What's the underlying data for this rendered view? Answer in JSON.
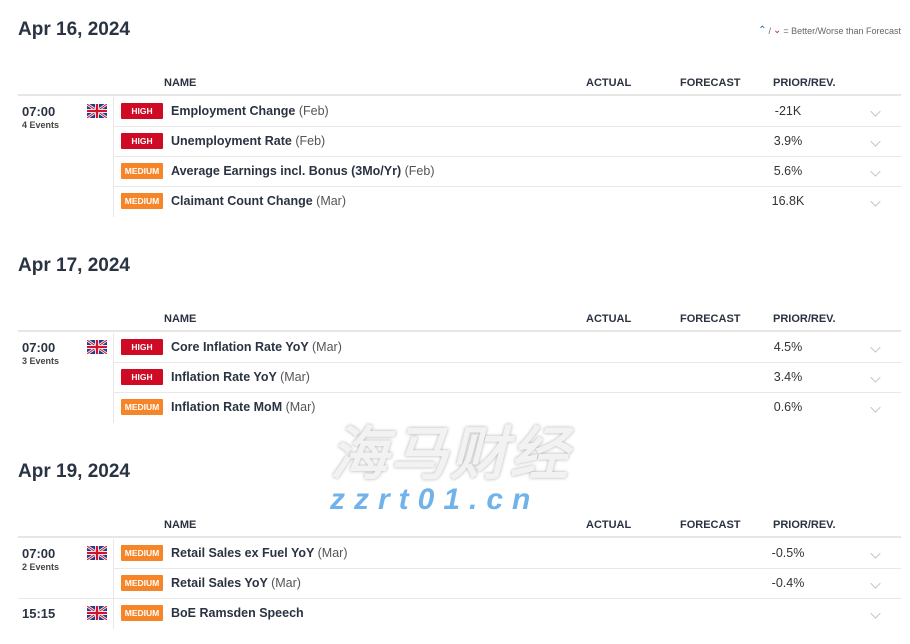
{
  "legend": {
    "better_icon": "better-arrow-icon",
    "worse_icon": "worse-arrow-icon",
    "separator": "/",
    "text": "= Better/Worse than Forecast",
    "colors": {
      "better": "#1c6fb5",
      "worse": "#c0282e"
    }
  },
  "columns": {
    "name": "NAME",
    "actual": "ACTUAL",
    "forecast": "FORECAST",
    "prior": "PRIOR/REV."
  },
  "importance_colors": {
    "HIGH": "#cf0a25",
    "MEDIUM": "#f6852a"
  },
  "sections": [
    {
      "date": "Apr 16, 2024",
      "groups": [
        {
          "time": "07:00",
          "events": "4 Events",
          "country": "UK",
          "rows": [
            {
              "importance": "HIGH",
              "name": "Employment Change",
              "period": "(Feb)",
              "actual": "",
              "forecast": "",
              "prior": "-21K"
            },
            {
              "importance": "HIGH",
              "name": "Unemployment Rate",
              "period": "(Feb)",
              "actual": "",
              "forecast": "",
              "prior": "3.9%"
            },
            {
              "importance": "MEDIUM",
              "name": "Average Earnings incl. Bonus (3Mo/Yr)",
              "period": "(Feb)",
              "actual": "",
              "forecast": "",
              "prior": "5.6%"
            },
            {
              "importance": "MEDIUM",
              "name": "Claimant Count Change",
              "period": "(Mar)",
              "actual": "",
              "forecast": "",
              "prior": "16.8K"
            }
          ]
        }
      ]
    },
    {
      "date": "Apr 17, 2024",
      "groups": [
        {
          "time": "07:00",
          "events": "3 Events",
          "country": "UK",
          "rows": [
            {
              "importance": "HIGH",
              "name": "Core Inflation Rate YoY",
              "period": "(Mar)",
              "actual": "",
              "forecast": "",
              "prior": "4.5%"
            },
            {
              "importance": "HIGH",
              "name": "Inflation Rate YoY",
              "period": "(Mar)",
              "actual": "",
              "forecast": "",
              "prior": "3.4%"
            },
            {
              "importance": "MEDIUM",
              "name": "Inflation Rate MoM",
              "period": "(Mar)",
              "actual": "",
              "forecast": "",
              "prior": "0.6%"
            }
          ]
        }
      ]
    },
    {
      "date": "Apr 19, 2024",
      "groups": [
        {
          "time": "07:00",
          "events": "2 Events",
          "country": "UK",
          "rows": [
            {
              "importance": "MEDIUM",
              "name": "Retail Sales ex Fuel YoY",
              "period": "(Mar)",
              "actual": "",
              "forecast": "",
              "prior": "-0.5%"
            },
            {
              "importance": "MEDIUM",
              "name": "Retail Sales YoY",
              "period": "(Mar)",
              "actual": "",
              "forecast": "",
              "prior": "-0.4%"
            }
          ]
        },
        {
          "time": "15:15",
          "events": "",
          "country": "UK",
          "rows": [
            {
              "importance": "MEDIUM",
              "name": "BoE Ramsden Speech",
              "period": "",
              "actual": "",
              "forecast": "",
              "prior": ""
            }
          ]
        }
      ]
    }
  ],
  "watermark": {
    "cn": "海马财经",
    "url": "zzrt01.cn"
  }
}
